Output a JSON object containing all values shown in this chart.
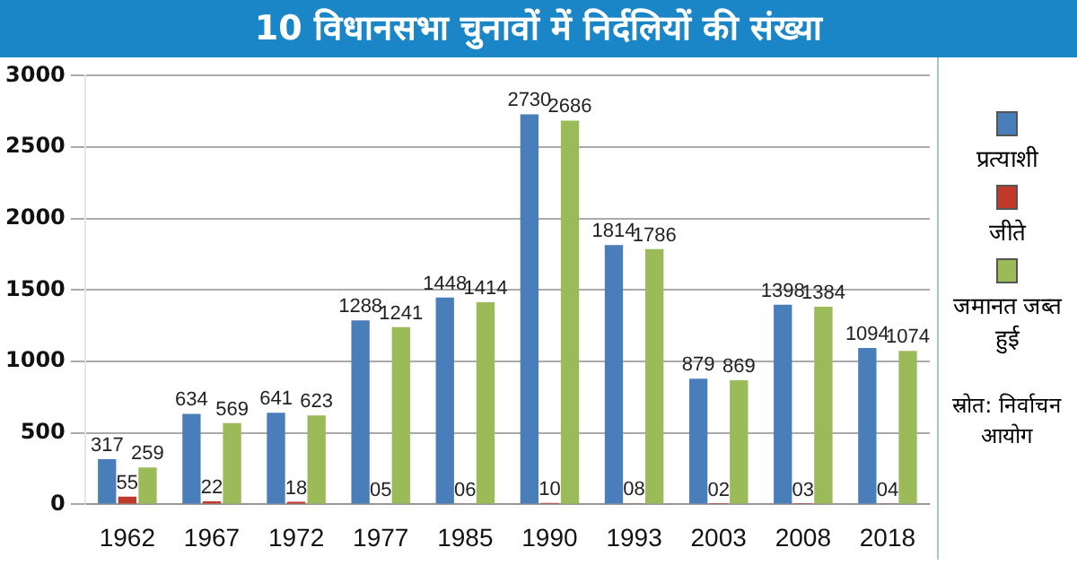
{
  "chart_data": {
    "type": "bar",
    "title": "10 विधानसभा चुनावों में निर्दलियों की संख्या",
    "categories": [
      "1962",
      "1967",
      "1972",
      "1977",
      "1985",
      "1990",
      "1993",
      "2003",
      "2008",
      "2018"
    ],
    "series": [
      {
        "name": "प्रत्याशी",
        "color": "#4a7ebb",
        "values": [
          317,
          634,
          641,
          1288,
          1448,
          2730,
          1814,
          879,
          1398,
          1094
        ],
        "value_labels": [
          "317",
          "634",
          "641",
          "1288",
          "1448",
          "2730",
          "1814",
          "879",
          "1398",
          "1094"
        ]
      },
      {
        "name": "जीते",
        "color": "#c0392b",
        "values": [
          55,
          22,
          18,
          5,
          6,
          10,
          8,
          2,
          3,
          4
        ],
        "value_labels": [
          "55",
          "22",
          "18",
          "05",
          "06",
          "10",
          "08",
          "02",
          "03",
          "04"
        ]
      },
      {
        "name": "जमानत जब्त हुई",
        "color": "#9bbb59",
        "values": [
          259,
          569,
          623,
          1241,
          1414,
          2686,
          1786,
          869,
          1384,
          1074
        ],
        "value_labels": [
          "259",
          "569",
          "623",
          "1241",
          "1414",
          "2686",
          "1786",
          "869",
          "1384",
          "1074"
        ]
      }
    ],
    "ylim": [
      0,
      3000
    ],
    "yticks": [
      0,
      500,
      1000,
      1500,
      2000,
      2500,
      3000
    ],
    "grid": "y",
    "legend": "right",
    "annotations": [
      "स्रोत: निर्वाचन आयोग"
    ]
  }
}
